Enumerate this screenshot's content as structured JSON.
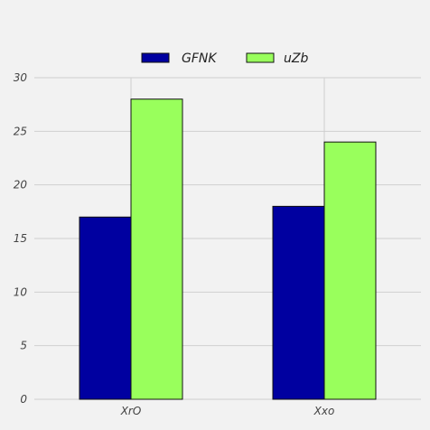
{
  "chart_data": {
    "type": "bar",
    "categories": [
      "XrO",
      "Xxo"
    ],
    "series": [
      {
        "name": "GFNK",
        "values": [
          17,
          18
        ],
        "color": "#0000a0"
      },
      {
        "name": "uZb",
        "values": [
          28,
          24
        ],
        "color": "#99ff5c"
      }
    ],
    "ylim": [
      0,
      30
    ],
    "yticks": [
      0,
      5,
      10,
      15,
      20,
      25,
      30
    ],
    "grid": true,
    "legend_position": "top-center",
    "background": "#f2f2f2",
    "bar_edge_color": "#111111"
  }
}
